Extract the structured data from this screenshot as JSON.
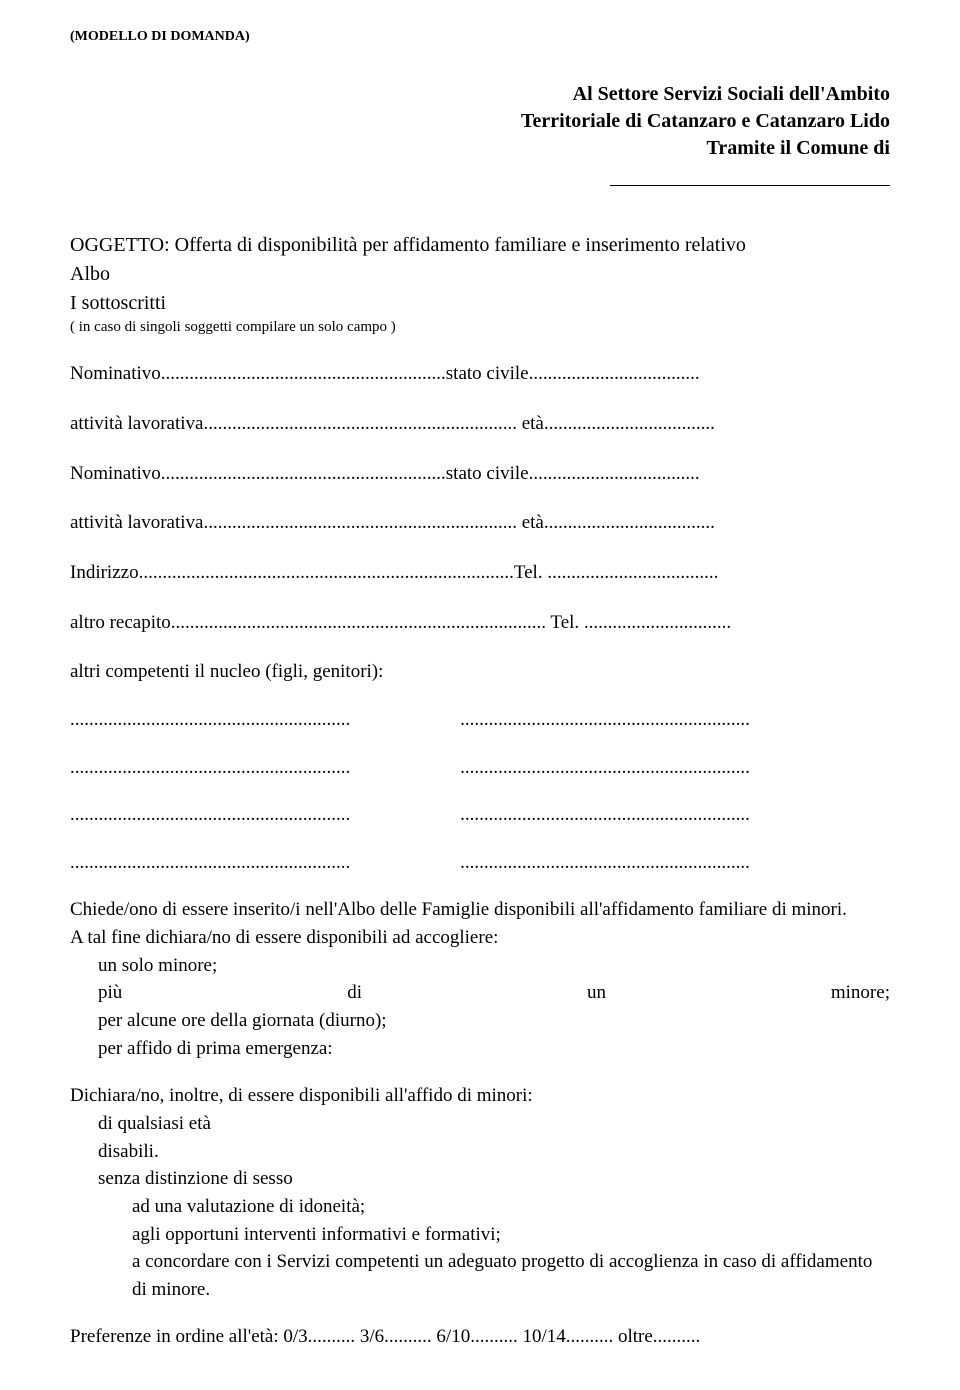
{
  "header": {
    "modello": "(MODELLO DI DOMANDA)"
  },
  "address": {
    "line1": "Al Settore Servizi Sociali dell'Ambito",
    "line2": "Territoriale di Catanzaro e Catanzaro Lido",
    "line3": "Tramite il Comune di"
  },
  "subject": {
    "label": "OGGETTO:",
    "text1": " Offerta di disponibilità per affidamento familiare e inserimento relativo",
    "line2": "Albo",
    "sottoscritti": " I sottoscritti",
    "note": "( in caso di singoli soggetti compilare un solo campo )"
  },
  "fields": {
    "nominativo1": "Nominativo............................................................stato civile....................................",
    "attivita1": "attività lavorativa.................................................................. età....................................",
    "nominativo2": "Nominativo............................................................stato civile....................................",
    "attivita2": "attività lavorativa.................................................................. età....................................",
    "indirizzo": "Indirizzo...............................................................................Tel. ....................................",
    "recapito": "altro recapito............................................................................... Tel. ...............................",
    "nucleo_intro": "altri competenti il nucleo (figli, genitori):",
    "dots_left": "...........................................................",
    "dots_right": "............................................................."
  },
  "request": {
    "line1": "Chiede/ono di essere inserito/i nell'Albo delle Famiglie disponibili all'affidamento familiare di minori.",
    "line2": "A tal fine dichiara/no di essere disponibili ad accogliere:",
    "opt1": "un solo minore;",
    "opt2_w1": "più",
    "opt2_w2": "di",
    "opt2_w3": "un",
    "opt2_w4": "minore;",
    "opt3": "per alcune ore della giornata (diurno);",
    "opt4": " per affido di prima emergenza:"
  },
  "declare": {
    "intro": "Dichiara/no, inoltre, di essere disponibili all'affido di minori:",
    "d1": "di qualsiasi età",
    "d2": "disabili.",
    "d3": "senza distinzione di sesso",
    "s1": "ad una valutazione di idoneità;",
    "s2": "agli opportuni interventi informativi e formativi;",
    "s3a": "a concordare con i Servizi competenti un adeguato progetto di  accoglienza in caso di affidamento",
    "s3b": "di minore."
  },
  "preferences": {
    "text": "Preferenze in ordine all'età: 0/3.......... 3/6.......... 6/10.......... 10/14.......... oltre.........."
  }
}
